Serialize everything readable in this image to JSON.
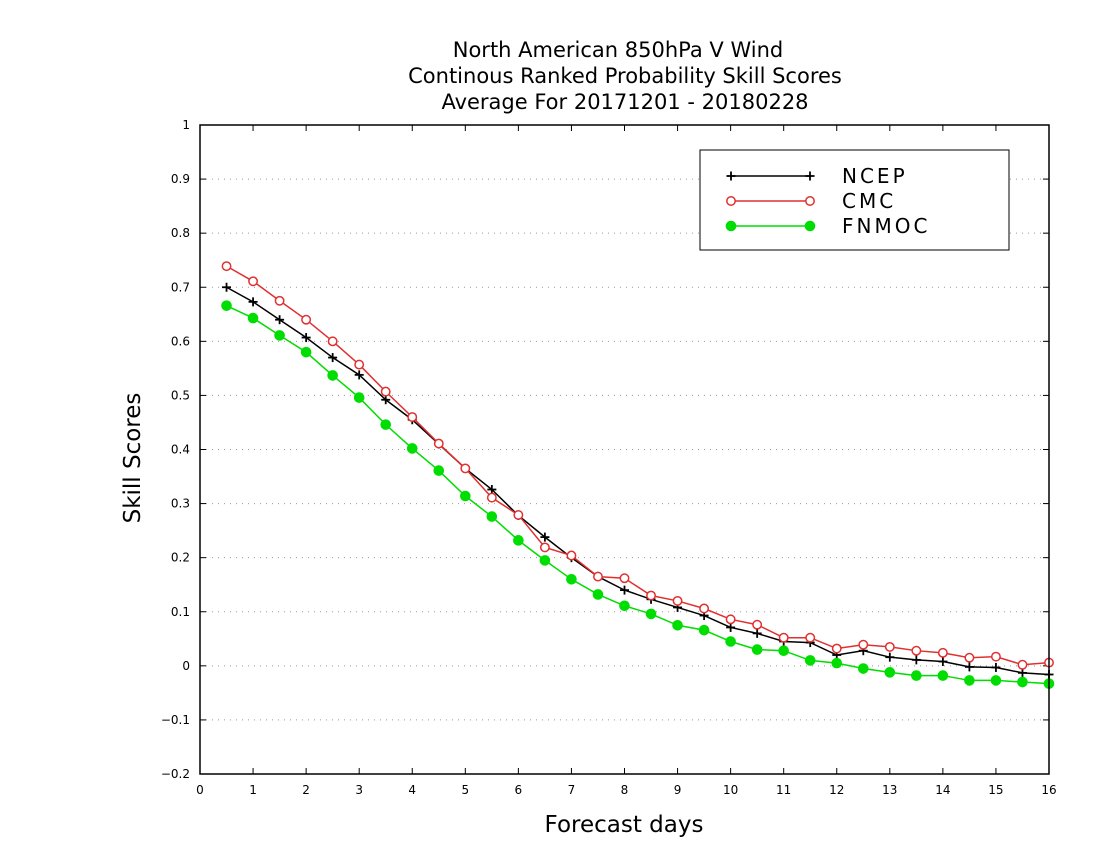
{
  "chart_data": {
    "type": "line",
    "title": [
      "North American 850hPa V Wind",
      "Continous Ranked Probability Skill Scores",
      "Average For 20171201 - 20180228"
    ],
    "xlabel": "Forecast days",
    "ylabel": "Skill Scores",
    "xlim": [
      0,
      16
    ],
    "ylim": [
      -0.2,
      1
    ],
    "xticks": [
      "0",
      "1",
      "2",
      "3",
      "4",
      "5",
      "6",
      "7",
      "8",
      "9",
      "10",
      "11",
      "12",
      "13",
      "14",
      "15",
      "16"
    ],
    "yticks": [
      "−0.2",
      "−0.1",
      "0",
      "0.1",
      "0.2",
      "0.3",
      "0.4",
      "0.5",
      "0.6",
      "0.7",
      "0.8",
      "0.9",
      "1"
    ],
    "grid": "horizontal dotted",
    "legend_position": "top-right",
    "x": [
      0.5,
      1,
      1.5,
      2,
      2.5,
      3,
      3.5,
      4,
      4.5,
      5,
      5.5,
      6,
      6.5,
      7,
      7.5,
      8,
      8.5,
      9,
      9.5,
      10,
      10.5,
      11,
      11.5,
      12,
      12.5,
      13,
      13.5,
      14,
      14.5,
      15,
      15.5,
      16
    ],
    "series": [
      {
        "name": "NCEP",
        "color": "#000000",
        "marker": "plus",
        "values": [
          0.7,
          0.673,
          0.64,
          0.607,
          0.57,
          0.538,
          0.492,
          0.455,
          0.41,
          0.365,
          0.326,
          0.278,
          0.238,
          0.2,
          0.165,
          0.14,
          0.123,
          0.108,
          0.093,
          0.071,
          0.06,
          0.045,
          0.043,
          0.02,
          0.028,
          0.016,
          0.011,
          0.008,
          -0.002,
          -0.003,
          -0.013,
          -0.016
        ]
      },
      {
        "name": "CMC",
        "color": "#e03030",
        "marker": "open-circle",
        "values": [
          0.739,
          0.711,
          0.675,
          0.64,
          0.6,
          0.557,
          0.507,
          0.46,
          0.411,
          0.365,
          0.311,
          0.279,
          0.219,
          0.204,
          0.165,
          0.162,
          0.13,
          0.12,
          0.106,
          0.086,
          0.076,
          0.052,
          0.052,
          0.032,
          0.039,
          0.035,
          0.028,
          0.024,
          0.015,
          0.017,
          0.002,
          0.006
        ]
      },
      {
        "name": "FNMOC",
        "color": "#00dd00",
        "marker": "filled-circle",
        "values": [
          0.666,
          0.643,
          0.611,
          0.58,
          0.537,
          0.496,
          0.446,
          0.402,
          0.361,
          0.314,
          0.276,
          0.232,
          0.195,
          0.16,
          0.132,
          0.111,
          0.096,
          0.075,
          0.066,
          0.045,
          0.03,
          0.028,
          0.01,
          0.005,
          -0.005,
          -0.012,
          -0.018,
          -0.018,
          -0.027,
          -0.027,
          -0.03,
          -0.033
        ]
      }
    ]
  }
}
